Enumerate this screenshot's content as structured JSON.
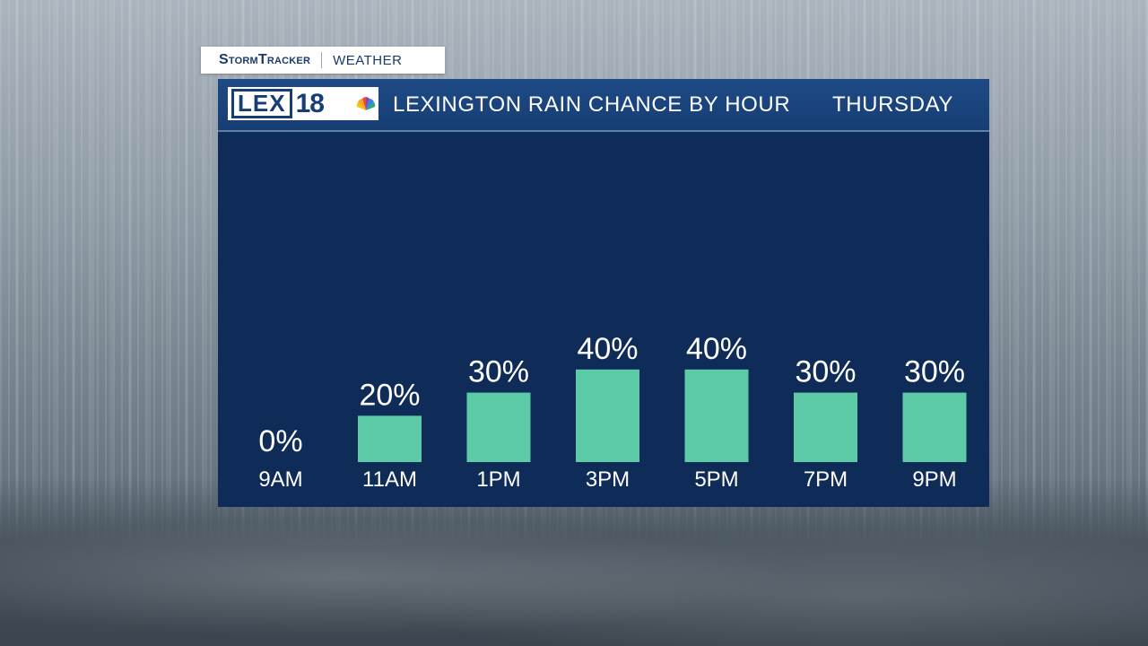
{
  "overlay_tag": {
    "brand": "StormTracker",
    "label": "WEATHER"
  },
  "header": {
    "logo_text": "LEX",
    "logo_number": "18",
    "title": "LEXINGTON RAIN CHANCE BY HOUR",
    "day": "THURSDAY"
  },
  "colors": {
    "panel": "#0f2c58",
    "header": "#1e4a86",
    "bar": "#5ecba8",
    "text": "#ffffff"
  },
  "chart_data": {
    "type": "bar",
    "categories": [
      "9AM",
      "11AM",
      "1PM",
      "3PM",
      "5PM",
      "7PM",
      "9PM"
    ],
    "values": [
      0,
      20,
      30,
      40,
      40,
      30,
      30
    ],
    "value_labels": [
      "0%",
      "20%",
      "30%",
      "40%",
      "40%",
      "30%",
      "30%"
    ],
    "title": "LEXINGTON RAIN CHANCE BY HOUR",
    "subtitle": "THURSDAY",
    "xlabel": "",
    "ylabel": "",
    "ylim": [
      0,
      100
    ],
    "grid": false,
    "legend": "none"
  }
}
